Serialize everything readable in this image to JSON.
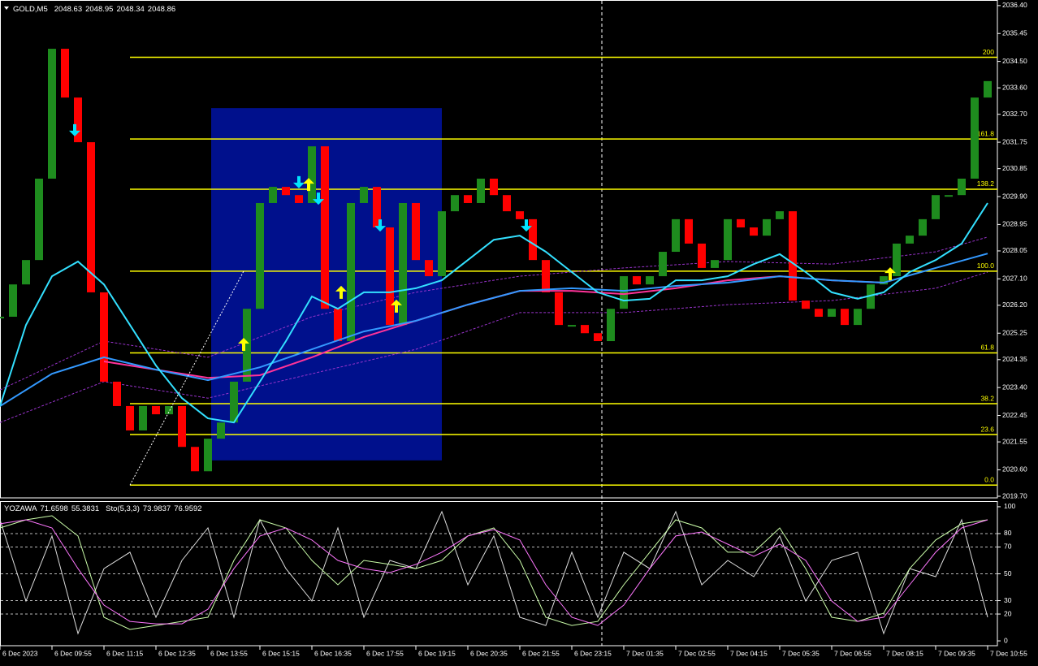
{
  "chart_data": [
    {
      "type": "price-bars",
      "title": "GOLD,M5",
      "quote": [
        2048.63,
        2048.95,
        2048.34,
        2048.86
      ],
      "xlim": [
        0,
        307
      ],
      "ylim": [
        2019.645,
        2036.59
      ],
      "xticks": [
        {
          "value": 0,
          "label": "6 Dec 2023"
        },
        {
          "value": 16,
          "label": "6 Dec 09:55"
        },
        {
          "value": 32,
          "label": "6 Dec 11:15"
        },
        {
          "value": 48,
          "label": "6 Dec 12:35"
        },
        {
          "value": 64,
          "label": "6 Dec 13:55"
        },
        {
          "value": 80,
          "label": "6 Dec 15:15"
        },
        {
          "value": 96,
          "label": "6 Dec 16:35"
        },
        {
          "value": 112,
          "label": "6 Dec 17:55"
        },
        {
          "value": 128,
          "label": "6 Dec 19:15"
        },
        {
          "value": 144,
          "label": "6 Dec 20:35"
        },
        {
          "value": 160,
          "label": "6 Dec 21:55"
        },
        {
          "value": 176,
          "label": "6 Dec 23:15"
        },
        {
          "value": 192,
          "label": "7 Dec 01:35"
        },
        {
          "value": 208,
          "label": "7 Dec 02:55"
        },
        {
          "value": 224,
          "label": "7 Dec 04:15"
        },
        {
          "value": 240,
          "label": "7 Dec 05:35"
        },
        {
          "value": 256,
          "label": "7 Dec 06:55"
        },
        {
          "value": 272,
          "label": "7 Dec 08:15"
        },
        {
          "value": 288,
          "label": "7 Dec 09:35"
        },
        {
          "value": 304,
          "label": "7 Dec 10:55"
        }
      ],
      "yticks": [
        {
          "value": 2036.4,
          "label": "2036.40"
        },
        2035.45,
        {
          "value": 2034.5,
          "label": "2034.50"
        },
        {
          "value": 2033.6,
          "label": "2033.60"
        },
        {
          "value": 2032.7,
          "label": "2032.70"
        },
        2031.75,
        2030.85,
        {
          "value": 2029.9,
          "label": "2029.90"
        },
        2028.95,
        2028.05,
        {
          "value": 2027.1,
          "label": "2027.10"
        },
        {
          "value": 2026.2,
          "label": "2026.20"
        },
        2025.25,
        2024.35,
        {
          "value": 2023.4,
          "label": "2023.40"
        },
        2022.45,
        2021.55,
        {
          "value": 2020.6,
          "label": "2020.60"
        },
        {
          "value": 2019.7,
          "label": "2019.70"
        }
      ],
      "price": {
        "up_color": "#1e8c1e",
        "down_color": "#ff0000",
        "x": [
          0,
          4,
          8,
          12,
          16,
          20,
          24,
          28,
          32,
          36,
          40,
          44,
          48,
          52,
          56,
          60,
          64,
          68,
          72,
          76,
          80,
          84,
          88,
          92,
          96,
          100,
          104,
          108,
          112,
          116,
          120,
          124,
          128,
          132,
          136,
          140,
          144,
          148,
          152,
          156,
          160,
          164,
          168,
          172,
          176,
          180,
          184,
          188,
          192,
          196,
          200,
          204,
          208,
          212,
          216,
          220,
          224,
          228,
          232,
          236,
          240,
          244,
          248,
          252,
          256,
          260,
          264,
          268,
          272,
          276,
          280,
          284,
          288,
          292,
          296,
          300,
          304
        ],
        "values": [
          2025.81,
          2026.91,
          2027.74,
          2030.51,
          2034.93,
          2033.27,
          2031.75,
          2026.64,
          2023.6,
          2022.77,
          2021.94,
          2022.77,
          2022.49,
          2022.77,
          2021.38,
          2020.55,
          2021.66,
          2022.21,
          2023.6,
          2026.08,
          2029.68,
          2030.23,
          2029.95,
          2029.68,
          2031.61,
          2026.08,
          2024.98,
          2029.68,
          2030.23,
          2028.85,
          2025.53,
          2029.68,
          2027.74,
          2027.19,
          2029.4,
          2029.95,
          2029.68,
          2030.51,
          2029.95,
          2029.4,
          2029.13,
          2027.74,
          2026.64,
          2025.53,
          2025.53,
          2025.25,
          2024.98,
          2026.08,
          2027.19,
          2026.91,
          2027.19,
          2028.02,
          2029.13,
          2028.3,
          2027.47,
          2027.74,
          2029.13,
          2028.85,
          2028.57,
          2029.13,
          2029.4,
          2026.36,
          2026.08,
          2025.81,
          2026.08,
          2025.53,
          2026.08,
          2026.91,
          2027.19,
          2028.3,
          2028.57,
          2029.13,
          2029.95,
          2029.95,
          2030.51,
          2033.27,
          2033.83
        ]
      },
      "overlays": [
        {
          "color": "#9933cc",
          "dash": true,
          "x": [
            0,
            32,
            64,
            96,
            128,
            160,
            192,
            224,
            256,
            288,
            304
          ],
          "values": [
            2023.32,
            2024.98,
            2024.43,
            2025.81,
            2026.64,
            2027.19,
            2027.47,
            2027.69,
            2027.6,
            2028.02,
            2028.52
          ]
        },
        {
          "color": "#9933cc",
          "dash": true,
          "x": [
            0,
            32,
            64,
            96,
            128,
            160,
            192,
            224,
            256,
            288,
            304
          ],
          "values": [
            2022.21,
            2023.6,
            2023.04,
            2023.87,
            2024.7,
            2025.95,
            2025.95,
            2026.22,
            2026.36,
            2026.78,
            2027.33
          ]
        },
        {
          "color": "#ff3399",
          "dash": false,
          "x": [
            32,
            48,
            64,
            80,
            96,
            112,
            128,
            144,
            160,
            176,
            192,
            208,
            224,
            240,
            256,
            272
          ],
          "values": [
            2024.29,
            2024.01,
            2023.73,
            2023.82,
            2024.43,
            2025.12,
            2025.67,
            2026.22,
            2026.69,
            2026.69,
            2026.58,
            2026.78,
            2027.05,
            2027.19,
            2027.05,
            2026.97
          ]
        },
        {
          "color": "#3399ff",
          "dash": false,
          "x": [
            0,
            16,
            32,
            48,
            64,
            80,
            96,
            112,
            128,
            144,
            160,
            176,
            192,
            208,
            224,
            240,
            256,
            272,
            288,
            304
          ],
          "values": [
            2022.77,
            2023.87,
            2024.43,
            2024.01,
            2023.65,
            2024.09,
            2024.7,
            2025.31,
            2025.67,
            2026.22,
            2026.69,
            2026.78,
            2026.69,
            2026.86,
            2026.97,
            2027.19,
            2027.05,
            2026.97,
            2027.47,
            2027.96
          ]
        },
        {
          "color": "#33e0ff",
          "dash": false,
          "x": [
            0,
            8,
            16,
            24,
            32,
            40,
            48,
            56,
            64,
            72,
            80,
            88,
            96,
            104,
            112,
            120,
            128,
            136,
            144,
            152,
            160,
            168,
            176,
            184,
            192,
            200,
            208,
            216,
            224,
            232,
            240,
            248,
            256,
            264,
            272,
            280,
            288,
            296,
            304
          ],
          "values": [
            2022.77,
            2025.53,
            2027.19,
            2027.69,
            2026.91,
            2025.53,
            2024.15,
            2023.04,
            2022.35,
            2022.21,
            2023.6,
            2024.98,
            2026.5,
            2026.08,
            2026.64,
            2026.64,
            2026.78,
            2027.05,
            2027.74,
            2028.43,
            2028.57,
            2028.02,
            2027.33,
            2026.64,
            2026.36,
            2026.42,
            2027.05,
            2027.05,
            2027.19,
            2027.6,
            2027.94,
            2027.33,
            2026.64,
            2026.42,
            2026.64,
            2027.33,
            2027.74,
            2028.3,
            2029.68
          ]
        }
      ],
      "rectangle": {
        "x0": 65,
        "x1": 136,
        "top": 2032.91,
        "bottom": 2020.92,
        "color": "#00108c"
      },
      "trendline": {
        "x": [
          40,
          75
        ],
        "values": [
          2020.08,
          2027.36
        ]
      },
      "fib": {
        "start": 40,
        "color": "#ffff00",
        "levels": [
          {
            "label": "200",
            "price": 2034.64
          },
          {
            "label": "161.8",
            "price": 2031.86
          },
          {
            "label": "138.2",
            "price": 2030.15
          },
          {
            "label": "100.0",
            "price": 2027.36
          },
          {
            "label": "61.8",
            "price": 2024.58
          },
          {
            "label": "38.2",
            "price": 2022.85
          },
          {
            "label": "23.6",
            "price": 2021.8
          },
          {
            "label": "0.0",
            "price": 2020.08
          }
        ]
      },
      "signal_colors": {
        "up": "#ffff00",
        "down": "#00e5ff"
      },
      "signals": [
        {
          "dir": "down",
          "x": 23,
          "price": 2031.95
        },
        {
          "dir": "down",
          "x": 92,
          "price": 2030.18
        },
        {
          "dir": "down",
          "x": 98,
          "price": 2029.62
        },
        {
          "dir": "down",
          "x": 117,
          "price": 2028.71
        },
        {
          "dir": "down",
          "x": 162,
          "price": 2028.71
        },
        {
          "dir": "up",
          "x": 75,
          "price": 2024.65
        },
        {
          "dir": "up",
          "x": 95,
          "price": 2030.09
        },
        {
          "dir": "up",
          "x": 105,
          "price": 2026.42
        },
        {
          "dir": "up",
          "x": 122,
          "price": 2025.95
        },
        {
          "dir": "up",
          "x": 274,
          "price": 2027.05
        }
      ]
    },
    {
      "type": "oscillator",
      "title": "YOZAWA",
      "title_values": [
        71.6598,
        55.3831
      ],
      "subtitle": "Sto(5,3,3)",
      "subtitle_values": [
        73.9837,
        76.9592
      ],
      "ylim": [
        -3.6,
        103.6
      ],
      "yticks": [
        100,
        80,
        70,
        50,
        30,
        20,
        0
      ],
      "levels": [
        80,
        70,
        50,
        30,
        20
      ],
      "x": [
        0,
        8,
        16,
        24,
        32,
        40,
        48,
        56,
        64,
        72,
        80,
        88,
        96,
        104,
        112,
        120,
        128,
        136,
        144,
        152,
        160,
        168,
        176,
        184,
        192,
        200,
        208,
        216,
        224,
        232,
        240,
        248,
        256,
        264,
        272,
        280,
        288,
        296,
        304
      ],
      "lines": [
        {
          "color": "#dddddd",
          "values": [
            90.3,
            29.7,
            78.2,
            5.5,
            53.9,
            66.1,
            17.6,
            60.0,
            84.2,
            17.6,
            90.3,
            53.9,
            29.7,
            84.2,
            17.6,
            60.0,
            53.9,
            96.4,
            41.8,
            78.2,
            17.6,
            11.5,
            66.1,
            17.6,
            66.1,
            53.9,
            96.4,
            41.8,
            60.0,
            47.9,
            78.2,
            29.7,
            60.0,
            66.1,
            5.5,
            53.9,
            47.9,
            90.3,
            17.6
          ]
        },
        {
          "color": "#ccffaa",
          "values": [
            84.2,
            90.3,
            93.3,
            78.2,
            17.6,
            8.5,
            11.5,
            14.5,
            17.6,
            60.0,
            90.3,
            84.2,
            60.0,
            41.8,
            60.0,
            57.0,
            53.9,
            60.0,
            78.2,
            84.2,
            60.0,
            17.6,
            11.5,
            14.5,
            41.8,
            66.1,
            90.3,
            84.2,
            66.1,
            66.1,
            84.2,
            53.9,
            17.6,
            14.5,
            20.6,
            53.9,
            75.2,
            87.3,
            90.3
          ]
        },
        {
          "color": "#ff77ff",
          "values": [
            87.3,
            90.3,
            84.2,
            53.9,
            26.7,
            14.5,
            12.7,
            12.7,
            23.6,
            53.9,
            78.2,
            84.2,
            75.2,
            60.0,
            53.9,
            50.9,
            57.0,
            66.1,
            78.2,
            83.0,
            75.2,
            41.8,
            17.6,
            11.5,
            26.7,
            53.9,
            78.2,
            81.2,
            72.1,
            63.0,
            72.1,
            60.0,
            29.7,
            14.5,
            17.6,
            41.8,
            66.1,
            84.2,
            90.3
          ]
        }
      ]
    }
  ]
}
